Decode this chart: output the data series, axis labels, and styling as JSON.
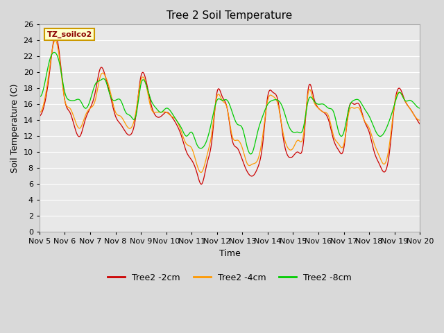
{
  "title": "Tree 2 Soil Temperature",
  "xlabel": "Time",
  "ylabel": "Soil Temperature (C)",
  "ylim": [
    0,
    26
  ],
  "yticks": [
    0,
    2,
    4,
    6,
    8,
    10,
    12,
    14,
    16,
    18,
    20,
    22,
    24,
    26
  ],
  "xtick_labels": [
    "Nov 5",
    "Nov 6",
    "Nov 7",
    "Nov 8",
    "Nov 9",
    "Nov 10",
    "Nov 11",
    "Nov 12",
    "Nov 13",
    "Nov 14",
    "Nov 15",
    "Nov 16",
    "Nov 17",
    "Nov 18",
    "Nov 19",
    "Nov 20"
  ],
  "series_colors": [
    "#cc0000",
    "#ff9900",
    "#00cc00"
  ],
  "series_labels": [
    "Tree2 -2cm",
    "Tree2 -4cm",
    "Tree2 -8cm"
  ],
  "legend_label": "TZ_soilco2",
  "fig_facecolor": "#d9d9d9",
  "ax_facecolor": "#e8e8e8",
  "grid_color": "#ffffff",
  "title_fontsize": 11,
  "axis_fontsize": 9,
  "tick_fontsize": 8,
  "red_key_x": [
    0.0,
    0.2,
    0.4,
    0.6,
    0.8,
    1.0,
    1.2,
    1.4,
    1.6,
    1.8,
    2.0,
    2.2,
    2.4,
    2.6,
    2.8,
    3.0,
    3.2,
    3.4,
    3.6,
    3.8,
    4.0,
    4.2,
    4.4,
    4.6,
    4.8,
    5.0,
    5.2,
    5.4,
    5.6,
    5.8,
    6.0,
    6.2,
    6.4,
    6.6,
    6.8,
    7.0,
    7.2,
    7.4,
    7.6,
    7.8,
    8.0,
    8.2,
    8.4,
    8.6,
    8.8,
    9.0,
    9.2,
    9.4,
    9.6,
    9.8,
    10.0,
    10.2,
    10.4,
    10.6,
    10.8,
    11.0,
    11.2,
    11.4,
    11.6,
    11.8,
    12.0,
    12.2,
    12.4,
    12.6,
    12.8,
    13.0,
    13.2,
    13.4,
    13.6,
    13.8,
    14.0,
    14.2,
    14.4,
    14.6,
    14.8,
    15.0
  ],
  "red_key_y": [
    14.5,
    16.0,
    20.0,
    24.5,
    22.0,
    16.5,
    15.0,
    13.0,
    12.0,
    14.0,
    15.5,
    17.5,
    20.5,
    19.5,
    17.0,
    14.5,
    13.5,
    12.5,
    12.2,
    14.5,
    19.5,
    19.0,
    16.0,
    14.5,
    14.5,
    15.0,
    14.5,
    13.5,
    12.0,
    10.0,
    9.0,
    7.5,
    6.0,
    8.5,
    11.5,
    17.5,
    17.0,
    15.5,
    11.5,
    10.5,
    9.0,
    7.5,
    7.0,
    8.0,
    11.0,
    17.0,
    17.5,
    16.5,
    12.0,
    9.5,
    9.5,
    10.0,
    11.0,
    18.0,
    17.0,
    15.5,
    15.0,
    14.0,
    11.5,
    10.2,
    10.5,
    15.5,
    16.0,
    16.0,
    14.0,
    12.5,
    10.0,
    8.5,
    7.5,
    10.0,
    16.0,
    18.0,
    16.5,
    15.5,
    14.5,
    13.5
  ],
  "orange_key_x": [
    0.0,
    0.2,
    0.4,
    0.6,
    0.8,
    1.0,
    1.2,
    1.4,
    1.6,
    1.8,
    2.0,
    2.2,
    2.4,
    2.6,
    2.8,
    3.0,
    3.2,
    3.4,
    3.6,
    3.8,
    4.0,
    4.2,
    4.4,
    4.6,
    4.8,
    5.0,
    5.2,
    5.4,
    5.6,
    5.8,
    6.0,
    6.2,
    6.4,
    6.6,
    6.8,
    7.0,
    7.2,
    7.4,
    7.6,
    7.8,
    8.0,
    8.2,
    8.4,
    8.6,
    8.8,
    9.0,
    9.2,
    9.4,
    9.6,
    9.8,
    10.0,
    10.2,
    10.4,
    10.6,
    10.8,
    11.0,
    11.2,
    11.4,
    11.6,
    11.8,
    12.0,
    12.2,
    12.4,
    12.6,
    12.8,
    13.0,
    13.2,
    13.4,
    13.6,
    13.8,
    14.0,
    14.2,
    14.4,
    14.6,
    14.8,
    15.0
  ],
  "orange_key_y": [
    15.0,
    16.5,
    20.5,
    24.0,
    21.5,
    16.5,
    15.5,
    14.0,
    13.0,
    14.5,
    15.5,
    16.5,
    19.5,
    19.5,
    17.5,
    15.0,
    14.5,
    13.5,
    13.0,
    15.0,
    19.0,
    18.5,
    15.5,
    15.0,
    15.0,
    15.0,
    14.5,
    14.0,
    12.5,
    11.0,
    10.5,
    8.5,
    7.5,
    9.5,
    12.5,
    17.0,
    16.5,
    15.5,
    12.0,
    11.5,
    10.5,
    8.5,
    8.5,
    9.0,
    12.0,
    16.5,
    17.0,
    16.0,
    12.5,
    10.5,
    10.5,
    11.5,
    12.0,
    17.5,
    16.5,
    15.5,
    15.0,
    14.5,
    12.0,
    11.0,
    11.0,
    15.0,
    15.5,
    15.5,
    14.0,
    13.0,
    11.0,
    9.5,
    8.5,
    11.0,
    16.0,
    17.5,
    16.5,
    15.5,
    14.5,
    14.0
  ],
  "green_key_x": [
    0.0,
    0.2,
    0.4,
    0.6,
    0.8,
    1.0,
    1.2,
    1.4,
    1.6,
    1.8,
    2.0,
    2.2,
    2.4,
    2.6,
    2.8,
    3.0,
    3.2,
    3.4,
    3.6,
    3.8,
    4.0,
    4.2,
    4.4,
    4.6,
    4.8,
    5.0,
    5.2,
    5.4,
    5.6,
    5.8,
    6.0,
    6.2,
    6.4,
    6.6,
    6.8,
    7.0,
    7.2,
    7.4,
    7.6,
    7.8,
    8.0,
    8.2,
    8.4,
    8.6,
    8.8,
    9.0,
    9.2,
    9.4,
    9.6,
    9.8,
    10.0,
    10.2,
    10.4,
    10.6,
    10.8,
    11.0,
    11.2,
    11.4,
    11.6,
    11.8,
    12.0,
    12.2,
    12.4,
    12.6,
    12.8,
    13.0,
    13.2,
    13.4,
    13.6,
    13.8,
    14.0,
    14.2,
    14.4,
    14.6,
    14.8,
    15.0
  ],
  "green_key_y": [
    17.0,
    18.5,
    21.5,
    22.5,
    21.0,
    17.5,
    16.5,
    16.5,
    16.5,
    15.5,
    16.5,
    18.5,
    19.0,
    19.0,
    17.0,
    16.5,
    16.5,
    15.0,
    14.5,
    14.5,
    18.5,
    18.5,
    16.5,
    15.5,
    15.0,
    15.5,
    15.0,
    14.0,
    13.0,
    12.0,
    12.5,
    11.0,
    10.5,
    11.5,
    14.0,
    16.5,
    16.5,
    16.5,
    15.0,
    13.5,
    13.0,
    10.5,
    10.0,
    12.5,
    14.5,
    16.0,
    16.5,
    16.5,
    15.5,
    13.5,
    12.5,
    12.5,
    13.0,
    16.5,
    16.5,
    16.0,
    16.0,
    15.5,
    15.0,
    12.5,
    12.5,
    15.5,
    16.5,
    16.5,
    15.5,
    14.5,
    13.0,
    12.0,
    12.5,
    14.0,
    16.0,
    17.5,
    16.5,
    16.5,
    16.0,
    15.5
  ]
}
